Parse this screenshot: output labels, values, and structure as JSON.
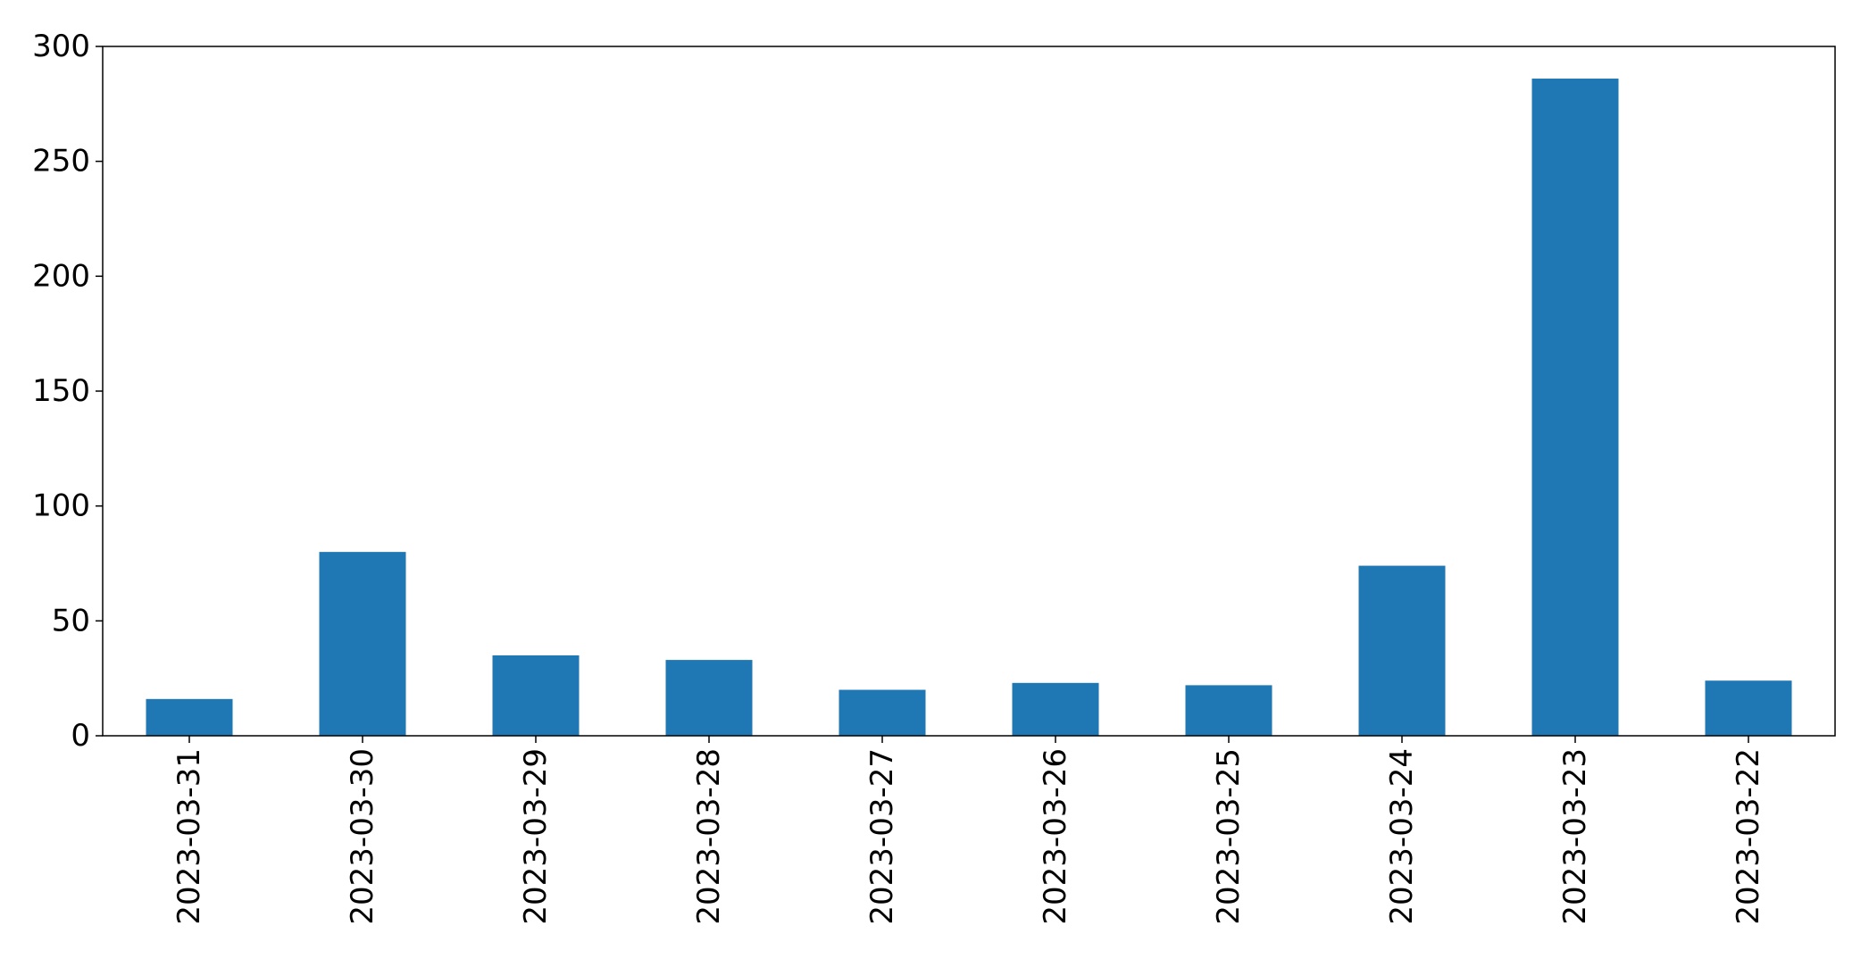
{
  "chart_data": {
    "type": "bar",
    "title": "",
    "xlabel": "",
    "ylabel": "",
    "categories": [
      "2023-03-31",
      "2023-03-30",
      "2023-03-29",
      "2023-03-28",
      "2023-03-27",
      "2023-03-26",
      "2023-03-25",
      "2023-03-24",
      "2023-03-23",
      "2023-03-22"
    ],
    "values": [
      16,
      80,
      35,
      33,
      20,
      23,
      22,
      74,
      286,
      24
    ],
    "ylim": [
      0,
      300
    ],
    "yticks": [
      0,
      50,
      100,
      150,
      200,
      250,
      300
    ],
    "grid": false,
    "legend": "none",
    "colors": {
      "bar": "#1f77b4",
      "axis": "#000000",
      "background": "#ffffff"
    }
  }
}
